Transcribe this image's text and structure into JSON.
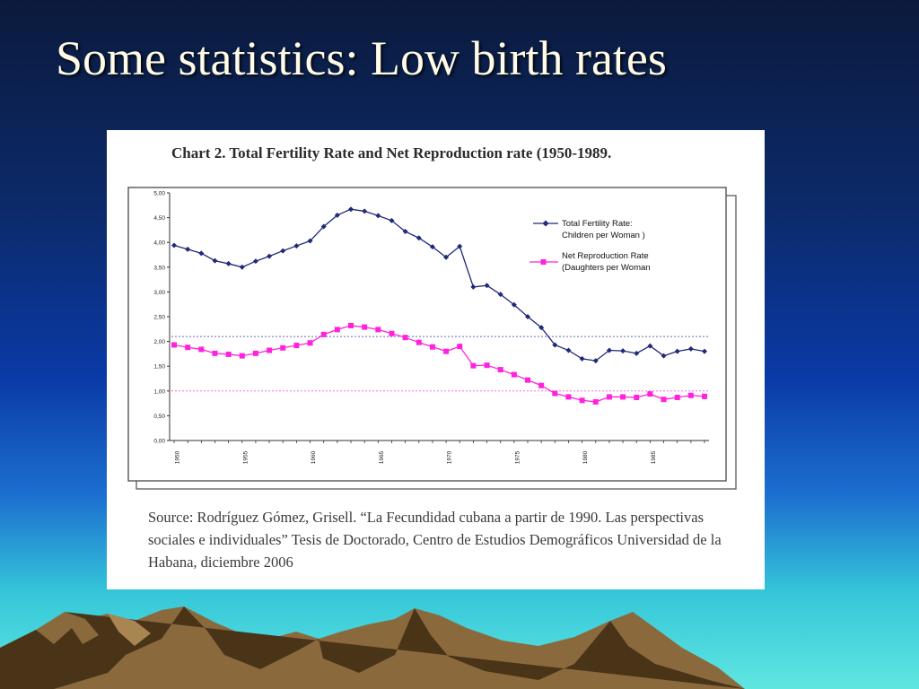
{
  "slide": {
    "title": "Some statistics: Low birth rates",
    "source_note": "Source: Rodríguez Gómez, Grisell. “La Fecundidad cubana a partir de 1990. Las perspectivas sociales e individuales” Tesis de Doctorado, Centro de Estudios Demográficos Universidad de la Habana, diciembre 2006"
  },
  "colors": {
    "tfr": "#1f2a78",
    "nrr": "#ff22dd",
    "ref_tfr": "#6b6bb0",
    "ref_nrr": "#ff66e6"
  },
  "chart_data": {
    "type": "line",
    "title": "Chart 2.  Total Fertility Rate and Net Reproduction rate (1950-1989.",
    "xlabel": "",
    "ylabel": "",
    "x": [
      1950,
      1951,
      1952,
      1953,
      1954,
      1955,
      1956,
      1957,
      1958,
      1959,
      1960,
      1961,
      1962,
      1963,
      1964,
      1965,
      1966,
      1967,
      1968,
      1969,
      1970,
      1971,
      1972,
      1973,
      1974,
      1975,
      1976,
      1977,
      1978,
      1979,
      1980,
      1981,
      1982,
      1983,
      1984,
      1985,
      1986,
      1987,
      1988,
      1989
    ],
    "x_tick_labels": [
      "1950",
      "1955",
      "1960",
      "1965",
      "1970",
      "1975",
      "1980",
      "1985"
    ],
    "y_tick_labels": [
      "0,00",
      "0,50",
      "1,00",
      "1,50",
      "2,00",
      "2,50",
      "3,00",
      "3,50",
      "4,00",
      "4,50",
      "5,00"
    ],
    "ylim": [
      0,
      5
    ],
    "legend_position": "top-right",
    "grid": false,
    "reference_lines": [
      2.1,
      1.0
    ],
    "series": [
      {
        "name": "Total Fertility Rate: Children per Woman )",
        "legend_line1": "Total Fertility Rate:",
        "legend_line2": "Children per Woman )",
        "marker": "diamond",
        "values": [
          3.94,
          3.86,
          3.78,
          3.63,
          3.57,
          3.5,
          3.62,
          3.72,
          3.83,
          3.93,
          4.03,
          4.32,
          4.55,
          4.67,
          4.63,
          4.54,
          4.44,
          4.22,
          4.09,
          3.91,
          3.7,
          3.92,
          3.1,
          3.13,
          2.95,
          2.74,
          2.5,
          2.28,
          1.93,
          1.82,
          1.65,
          1.61,
          1.82,
          1.81,
          1.76,
          1.91,
          1.71,
          1.8,
          1.85,
          1.8
        ]
      },
      {
        "name": "Net Reproduction Rate (Daughters per Woman",
        "legend_line1": "Net Reproduction Rate",
        "legend_line2": "(Daughters per Woman",
        "marker": "square",
        "values": [
          1.93,
          1.88,
          1.84,
          1.76,
          1.74,
          1.71,
          1.76,
          1.82,
          1.87,
          1.92,
          1.97,
          2.14,
          2.24,
          2.32,
          2.29,
          2.24,
          2.16,
          2.08,
          1.98,
          1.89,
          1.8,
          1.9,
          1.51,
          1.52,
          1.43,
          1.33,
          1.22,
          1.11,
          0.95,
          0.88,
          0.81,
          0.78,
          0.88,
          0.88,
          0.87,
          0.94,
          0.83,
          0.87,
          0.91,
          0.89
        ]
      }
    ]
  }
}
